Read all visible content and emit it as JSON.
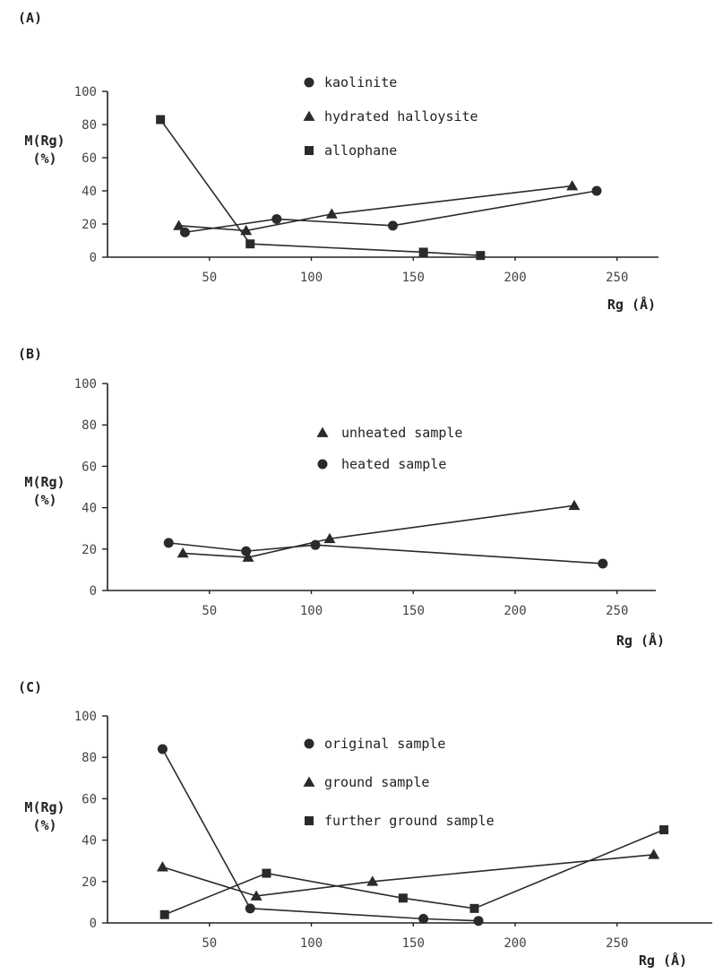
{
  "chart_data": [
    {
      "type": "line",
      "panel_label": "(A)",
      "ylabel_top": "M(Rg)",
      "ylabel_bottom": "(%)",
      "xlabel": "Rg (Å)",
      "xlim": [
        0,
        270
      ],
      "ylim": [
        0,
        100
      ],
      "xticks": [
        50,
        100,
        150,
        200,
        250
      ],
      "yticks": [
        0,
        20,
        40,
        60,
        80,
        100
      ],
      "legend_position": "top-center",
      "grid": false,
      "series": [
        {
          "name": "kaolinite",
          "marker": "circle",
          "x": [
            38,
            83,
            140,
            240
          ],
          "y": [
            15,
            23,
            19,
            40
          ]
        },
        {
          "name": "hydrated halloysite",
          "marker": "triangle",
          "x": [
            35,
            68,
            110,
            228
          ],
          "y": [
            19,
            16,
            26,
            43
          ]
        },
        {
          "name": "allophane",
          "marker": "square",
          "x": [
            26,
            70,
            155,
            183
          ],
          "y": [
            83,
            8,
            3,
            1
          ]
        }
      ]
    },
    {
      "type": "line",
      "panel_label": "(B)",
      "ylabel_top": "M(Rg)",
      "ylabel_bottom": "(%)",
      "xlabel": "Rg (Å)",
      "xlim": [
        0,
        270
      ],
      "ylim": [
        0,
        100
      ],
      "xticks": [
        50,
        100,
        150,
        200,
        250
      ],
      "yticks": [
        0,
        20,
        40,
        60,
        80,
        100
      ],
      "legend_position": "top-center",
      "grid": false,
      "series": [
        {
          "name": "unheated sample",
          "marker": "triangle",
          "x": [
            37,
            69,
            109,
            229
          ],
          "y": [
            18,
            16,
            25,
            41
          ]
        },
        {
          "name": "heated sample",
          "marker": "circle",
          "x": [
            30,
            68,
            102,
            243
          ],
          "y": [
            23,
            19,
            22,
            13
          ]
        }
      ]
    },
    {
      "type": "line",
      "panel_label": "(C)",
      "ylabel_top": "M(Rg)",
      "ylabel_bottom": "(%)",
      "xlabel": "Rg (Å)",
      "xlim": [
        0,
        270
      ],
      "ylim": [
        0,
        100
      ],
      "xticks": [
        50,
        100,
        150,
        200,
        250
      ],
      "yticks": [
        0,
        20,
        40,
        60,
        80,
        100
      ],
      "legend_position": "top-center",
      "grid": false,
      "series": [
        {
          "name": "original sample",
          "marker": "circle",
          "x": [
            27,
            70,
            155,
            182
          ],
          "y": [
            84,
            7,
            2,
            1
          ]
        },
        {
          "name": "ground sample",
          "marker": "triangle",
          "x": [
            27,
            73,
            130,
            268
          ],
          "y": [
            27,
            13,
            20,
            33
          ]
        },
        {
          "name": "further ground sample",
          "marker": "square",
          "x": [
            28,
            78,
            145,
            180,
            273
          ],
          "y": [
            4,
            24,
            12,
            7,
            45
          ]
        }
      ]
    }
  ]
}
